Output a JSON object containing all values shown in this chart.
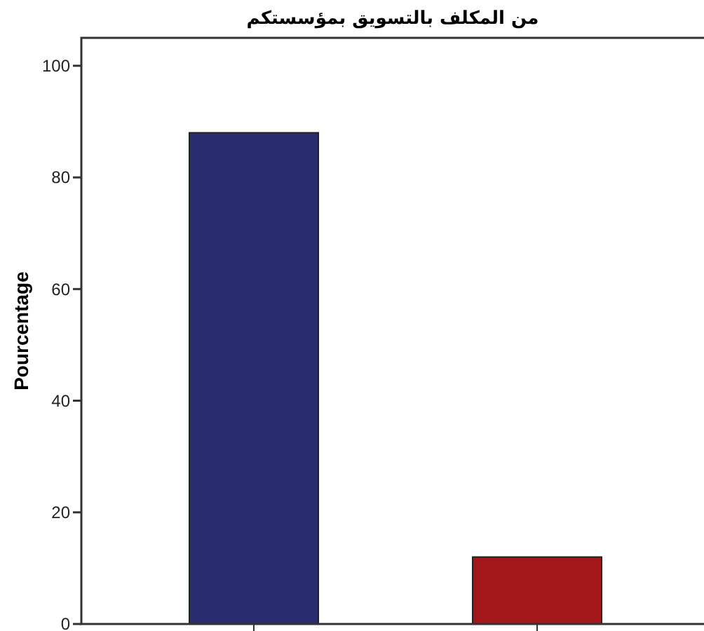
{
  "chart_data": {
    "type": "bar",
    "title": "من المكلف بالتسويق بمؤسستكم",
    "ylabel": "Pourcentage",
    "categories": [
      null,
      null
    ],
    "values": [
      88,
      12
    ],
    "colors": [
      "#292c6f",
      "#a3161a"
    ],
    "ylim": [
      0,
      105
    ],
    "yticks": [
      0,
      20,
      40,
      60,
      80,
      100
    ],
    "grid": false
  }
}
